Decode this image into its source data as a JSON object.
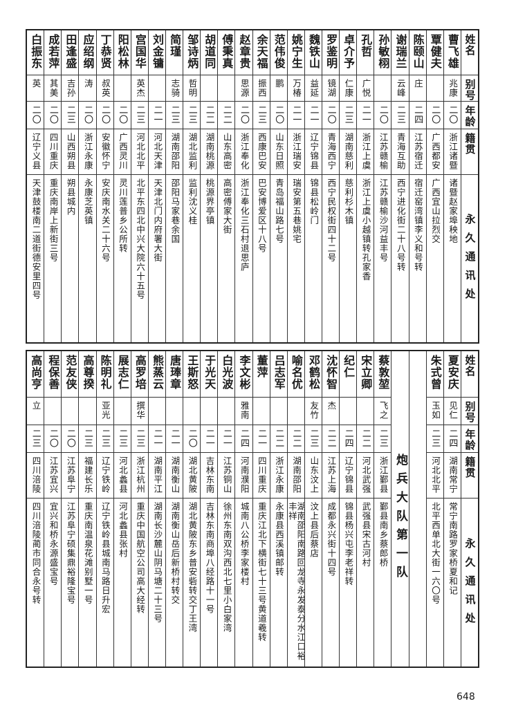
{
  "headers": {
    "name": "姓名",
    "alias": "别号",
    "age": "年龄",
    "native": "籍贯",
    "address": "永久通讯处"
  },
  "upper": [
    {
      "name": "曹飞雄",
      "alias": "兆康",
      "age": "二〇",
      "native": "浙江诸暨",
      "address": "诸暨赵家埠秧地"
    },
    {
      "name": "覃健夫",
      "alias": "",
      "age": "二〇",
      "native": "广西都安",
      "address": "广西宜山拉烈交"
    },
    {
      "name": "陈颐山",
      "alias": "庄",
      "age": "二四",
      "native": "江苏宿迁",
      "address": "宿迁窑湾镇李义和号转"
    },
    {
      "name": "谢瑞兰",
      "alias": "云峰",
      "age": "二三",
      "native": "青海互助",
      "address": "西宁进化街二十八号转"
    },
    {
      "name": "孙敏栩",
      "alias": "",
      "age": "二〇",
      "native": "江苏赣榆",
      "address": "江苏赣榆沙河益丰号"
    },
    {
      "name": "孔哲",
      "alias": "广悦",
      "age": "二一",
      "native": "浙江上虞",
      "address": "浙江上虞小越镇转孔家香"
    },
    {
      "name": "卓介予",
      "alias": "仁康",
      "age": "二三",
      "native": "湖南慈利",
      "address": "慈利杉木镇"
    },
    {
      "name": "罗鉴明",
      "alias": "镜湖",
      "age": "二〇",
      "native": "青海西宁",
      "address": "西宁民权街四十二号"
    },
    {
      "name": "魏铁山",
      "alias": "益延",
      "age": "二一",
      "native": "辽宁锦县",
      "address": "锦县松岭门"
    },
    {
      "name": "姚宁生",
      "alias": "万椿",
      "age": "二一",
      "native": "浙江瑞安",
      "address": "瑞安第五巷姚宅"
    },
    {
      "name": "范伟俊",
      "alias": "鹏",
      "age": "二〇",
      "native": "山东日照",
      "address": "青岛福山路七号"
    },
    {
      "name": "余天福",
      "alias": "振西",
      "age": "二三",
      "native": "西康巴安",
      "address": "巴安博爱区十八号"
    },
    {
      "name": "赵章贵",
      "alias": "思源",
      "age": "二〇",
      "native": "浙江奉化",
      "address": "浙江奉化三石村退思庐"
    },
    {
      "name": "傅秉真",
      "alias": "",
      "age": "二二",
      "native": "山东高密",
      "address": "高密傅家大街"
    },
    {
      "name": "胡道同",
      "alias": "",
      "age": "二二",
      "native": "湖南桃源",
      "address": "桃源界亭镇"
    },
    {
      "name": "邹诗炳",
      "alias": "哲明",
      "age": "二三",
      "native": "湖北监利",
      "address": "监利沈义桂"
    },
    {
      "name": "简瑾",
      "alias": "志骑",
      "age": "二三",
      "native": "湖南邵阳",
      "address": "邵阳马家巷余国"
    },
    {
      "name": "刘金镛",
      "alias": "",
      "age": "二一",
      "native": "河北天津",
      "address": "天津北门内府署大街"
    },
    {
      "name": "宫国华",
      "alias": "英杰",
      "age": "二三",
      "native": "河北北平",
      "address": "北平东四北中兴大院六十五号"
    },
    {
      "name": "阳松林",
      "alias": "",
      "age": "二〇",
      "native": "广西灵川",
      "address": "灵川莲普乡公所转"
    },
    {
      "name": "丁恭贤",
      "alias": "叔英",
      "age": "二〇",
      "native": "安徽怀宁",
      "address": "安庆南水关二十六号"
    },
    {
      "name": "应绍纲",
      "alias": "涛",
      "age": "二〇",
      "native": "浙江永康",
      "address": "永康芝英镇"
    },
    {
      "name": "田逢盛",
      "alias": "吉孙",
      "age": "二三",
      "native": "山西朔县",
      "address": "朔县城内"
    },
    {
      "name": "成若萍",
      "alias": "其美",
      "age": "二〇",
      "native": "四川重庆",
      "address": "重庆南岸上新街三号"
    },
    {
      "name": "白振东",
      "alias": "英",
      "age": "二〇",
      "native": "辽宁义县",
      "address": "天津鼓楼南二道街德安里四号"
    }
  ],
  "lower_before": [
    {
      "name": "夏安庆",
      "alias": "见仁",
      "age": "二四",
      "native": "湖南常宁",
      "address": "常宁南路罗家桥夏和记"
    },
    {
      "name": "朱式曾",
      "alias": "玉如",
      "age": "二三",
      "native": "河北北平",
      "address": "北平西单北大街一六〇号"
    }
  ],
  "section_title": "炮兵大队第一队",
  "lower": [
    {
      "name": "蔡敦堃",
      "alias": "飞之",
      "age": "二三",
      "native": "浙江鄞县",
      "address": "鄞县南乡蔡郎桥"
    },
    {
      "name": "宋立卿",
      "alias": "",
      "age": "二二",
      "native": "河北武强",
      "address": "武强县宋古河村"
    },
    {
      "name": "纪仁",
      "alias": "",
      "age": "二四",
      "native": "辽宁锦县",
      "address": "锦县杨兴屯李老祥转"
    },
    {
      "name": "沈怀智",
      "alias": "杰",
      "age": "二二",
      "native": "江苏上海",
      "address": "成都永兴街十四号"
    },
    {
      "name": "邓鹤松",
      "alias": "友竹",
      "age": "二三",
      "native": "山东汶上",
      "address": "汶上县后蔡店"
    },
    {
      "name": "喻名优",
      "alias": "",
      "age": "二二",
      "native": "湖南邵阳",
      "address": "湖南邵阳南路回龙寺永发泰分水江口裕丰祥"
    },
    {
      "name": "吕志军",
      "alias": "",
      "age": "二二",
      "native": "浙江永康",
      "address": "永康县西溪镇邮转"
    },
    {
      "name": "董萍",
      "alias": "",
      "age": "二一",
      "native": "四川重庆",
      "address": "重庆江北下横街七十三号黄道羲转"
    },
    {
      "name": "李文彬",
      "alias": "雅南",
      "age": "二四",
      "native": "河南濮阳",
      "address": "城南八公桥李家楼村"
    },
    {
      "name": "白光波",
      "alias": "",
      "age": "二一",
      "native": "江苏铜山",
      "address": "徐州东南双沟西北七里小白家湾"
    },
    {
      "name": "于光天",
      "alias": "",
      "age": "二一",
      "native": "吉林东南",
      "address": "吉林东南商埠八经路十一号"
    },
    {
      "name": "王斯怒",
      "alias": "",
      "age": "二〇",
      "native": "湖北黄陂",
      "address": "湖北黄陂东乡普安砦转交丁王湾"
    },
    {
      "name": "唐琫章",
      "alias": "",
      "age": "二一",
      "native": "湖南衡山",
      "address": "湖南衡山岳后新桥村转交"
    },
    {
      "name": "熊蒸云",
      "alias": "",
      "age": "二一",
      "native": "湖南平江",
      "address": "湖南长沙麓山阴马塘二十三号"
    },
    {
      "name": "高罗培",
      "alias": "撰华",
      "age": "二三",
      "native": "浙江杭州",
      "address": "重庆中国航空公司高大经转"
    },
    {
      "name": "展志仁",
      "alias": "",
      "age": "二三",
      "native": "河北蠡县",
      "address": "河北蠡县张村"
    },
    {
      "name": "陈明礼",
      "alias": "亚光",
      "age": "二三",
      "native": "辽宁铁岭",
      "address": "辽宁铁岭县城南马路日升宏"
    },
    {
      "name": "高尊揆",
      "alias": "",
      "age": "二三",
      "native": "福建长乐",
      "address": "重庆南温泉花滩别墅一号"
    },
    {
      "name": "范友侠",
      "alias": "",
      "age": "二〇",
      "native": "江苏阜宁",
      "address": "江苏阜宁硕集鼎裕隆宝号"
    },
    {
      "name": "程保善",
      "alias": "",
      "age": "二〇",
      "native": "江苏宜兴",
      "address": "宜兴和桥永源盛宝号"
    },
    {
      "name": "高尚亨",
      "alias": "立",
      "age": "二三",
      "native": "四川涪陵",
      "address": "四川涪陵蔺市同合永号转"
    }
  ],
  "page_number": "648"
}
